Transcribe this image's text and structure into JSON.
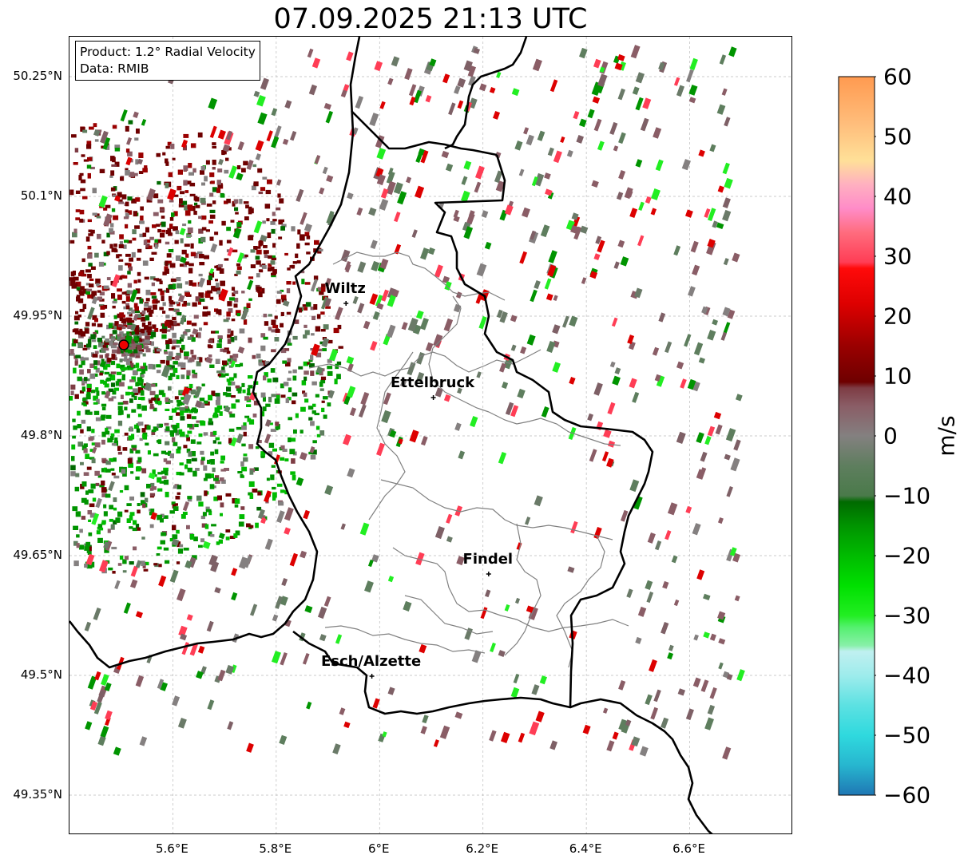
{
  "title": "07.09.2025 21:13 UTC",
  "info_box": {
    "product": "Product: 1.2° Radial Velocity",
    "data": "Data: RMIB"
  },
  "map": {
    "lon_range": [
      5.4,
      6.8
    ],
    "lat_range": [
      49.3,
      50.3
    ],
    "lat_ticks": [
      {
        "value": 50.25,
        "label": "50.25°N"
      },
      {
        "value": 50.1,
        "label": "50.1°N"
      },
      {
        "value": 49.95,
        "label": "49.95°N"
      },
      {
        "value": 49.8,
        "label": "49.8°N"
      },
      {
        "value": 49.65,
        "label": "49.65°N"
      },
      {
        "value": 49.5,
        "label": "49.5°N"
      },
      {
        "value": 49.35,
        "label": "49.35°N"
      }
    ],
    "lon_ticks": [
      {
        "value": 5.6,
        "label": "5.6°E"
      },
      {
        "value": 5.8,
        "label": "5.8°E"
      },
      {
        "value": 6.0,
        "label": "6°E"
      },
      {
        "value": 6.2,
        "label": "6.2°E"
      },
      {
        "value": 6.4,
        "label": "6.4°E"
      },
      {
        "value": 6.6,
        "label": "6.6°E"
      }
    ],
    "radar_site": {
      "lon": 5.505,
      "lat": 49.914,
      "color": "#ee0000"
    },
    "cities": [
      {
        "name": "Wiltz",
        "lon": 5.935,
        "lat": 49.966
      },
      {
        "name": "Ettelbruck",
        "lon": 6.104,
        "lat": 49.848
      },
      {
        "name": "Findel",
        "lon": 6.211,
        "lat": 49.627
      },
      {
        "name": "Esch/Alzette",
        "lon": 5.985,
        "lat": 49.499
      }
    ],
    "border_color": "#000000",
    "canton_color": "#808080",
    "grid": true
  },
  "colorbar": {
    "min": -60,
    "max": 60,
    "unit_label": "m/s",
    "ticks": [
      {
        "value": 60,
        "label": "60"
      },
      {
        "value": 50,
        "label": "50"
      },
      {
        "value": 40,
        "label": "40"
      },
      {
        "value": 30,
        "label": "30"
      },
      {
        "value": 20,
        "label": "20"
      },
      {
        "value": 10,
        "label": "10"
      },
      {
        "value": 0,
        "label": "0"
      },
      {
        "value": -10,
        "label": "−10"
      },
      {
        "value": -20,
        "label": "−20"
      },
      {
        "value": -30,
        "label": "−30"
      },
      {
        "value": -40,
        "label": "−40"
      },
      {
        "value": -50,
        "label": "−50"
      },
      {
        "value": -60,
        "label": "−60"
      }
    ],
    "stops": [
      {
        "value": -60,
        "color": "#1f77b4"
      },
      {
        "value": -55,
        "color": "#27b6cf"
      },
      {
        "value": -50,
        "color": "#2fd9de"
      },
      {
        "value": -45,
        "color": "#5ce1e2"
      },
      {
        "value": -40,
        "color": "#9eecec"
      },
      {
        "value": -36,
        "color": "#c0f0f0"
      },
      {
        "value": -35,
        "color": "#88f0a8"
      },
      {
        "value": -32,
        "color": "#55f070"
      },
      {
        "value": -30,
        "color": "#22ee22"
      },
      {
        "value": -25,
        "color": "#00e000"
      },
      {
        "value": -20,
        "color": "#00bb00"
      },
      {
        "value": -15,
        "color": "#009400"
      },
      {
        "value": -11,
        "color": "#006a00"
      },
      {
        "value": -10,
        "color": "#4a7a4a"
      },
      {
        "value": -5,
        "color": "#5e7e5e"
      },
      {
        "value": 0,
        "color": "#848080"
      },
      {
        "value": 5,
        "color": "#8a5d66"
      },
      {
        "value": 8,
        "color": "#7e3c44"
      },
      {
        "value": 9,
        "color": "#6e0000"
      },
      {
        "value": 15,
        "color": "#9a0000"
      },
      {
        "value": 22,
        "color": "#dd0000"
      },
      {
        "value": 28,
        "color": "#ff0a0a"
      },
      {
        "value": 29,
        "color": "#ff3d55"
      },
      {
        "value": 34,
        "color": "#ff6c7e"
      },
      {
        "value": 38,
        "color": "#ff8cc8"
      },
      {
        "value": 42,
        "color": "#ffb0c0"
      },
      {
        "value": 46,
        "color": "#ffe098"
      },
      {
        "value": 52,
        "color": "#ffbe7c"
      },
      {
        "value": 60,
        "color": "#ff9a50"
      }
    ]
  }
}
